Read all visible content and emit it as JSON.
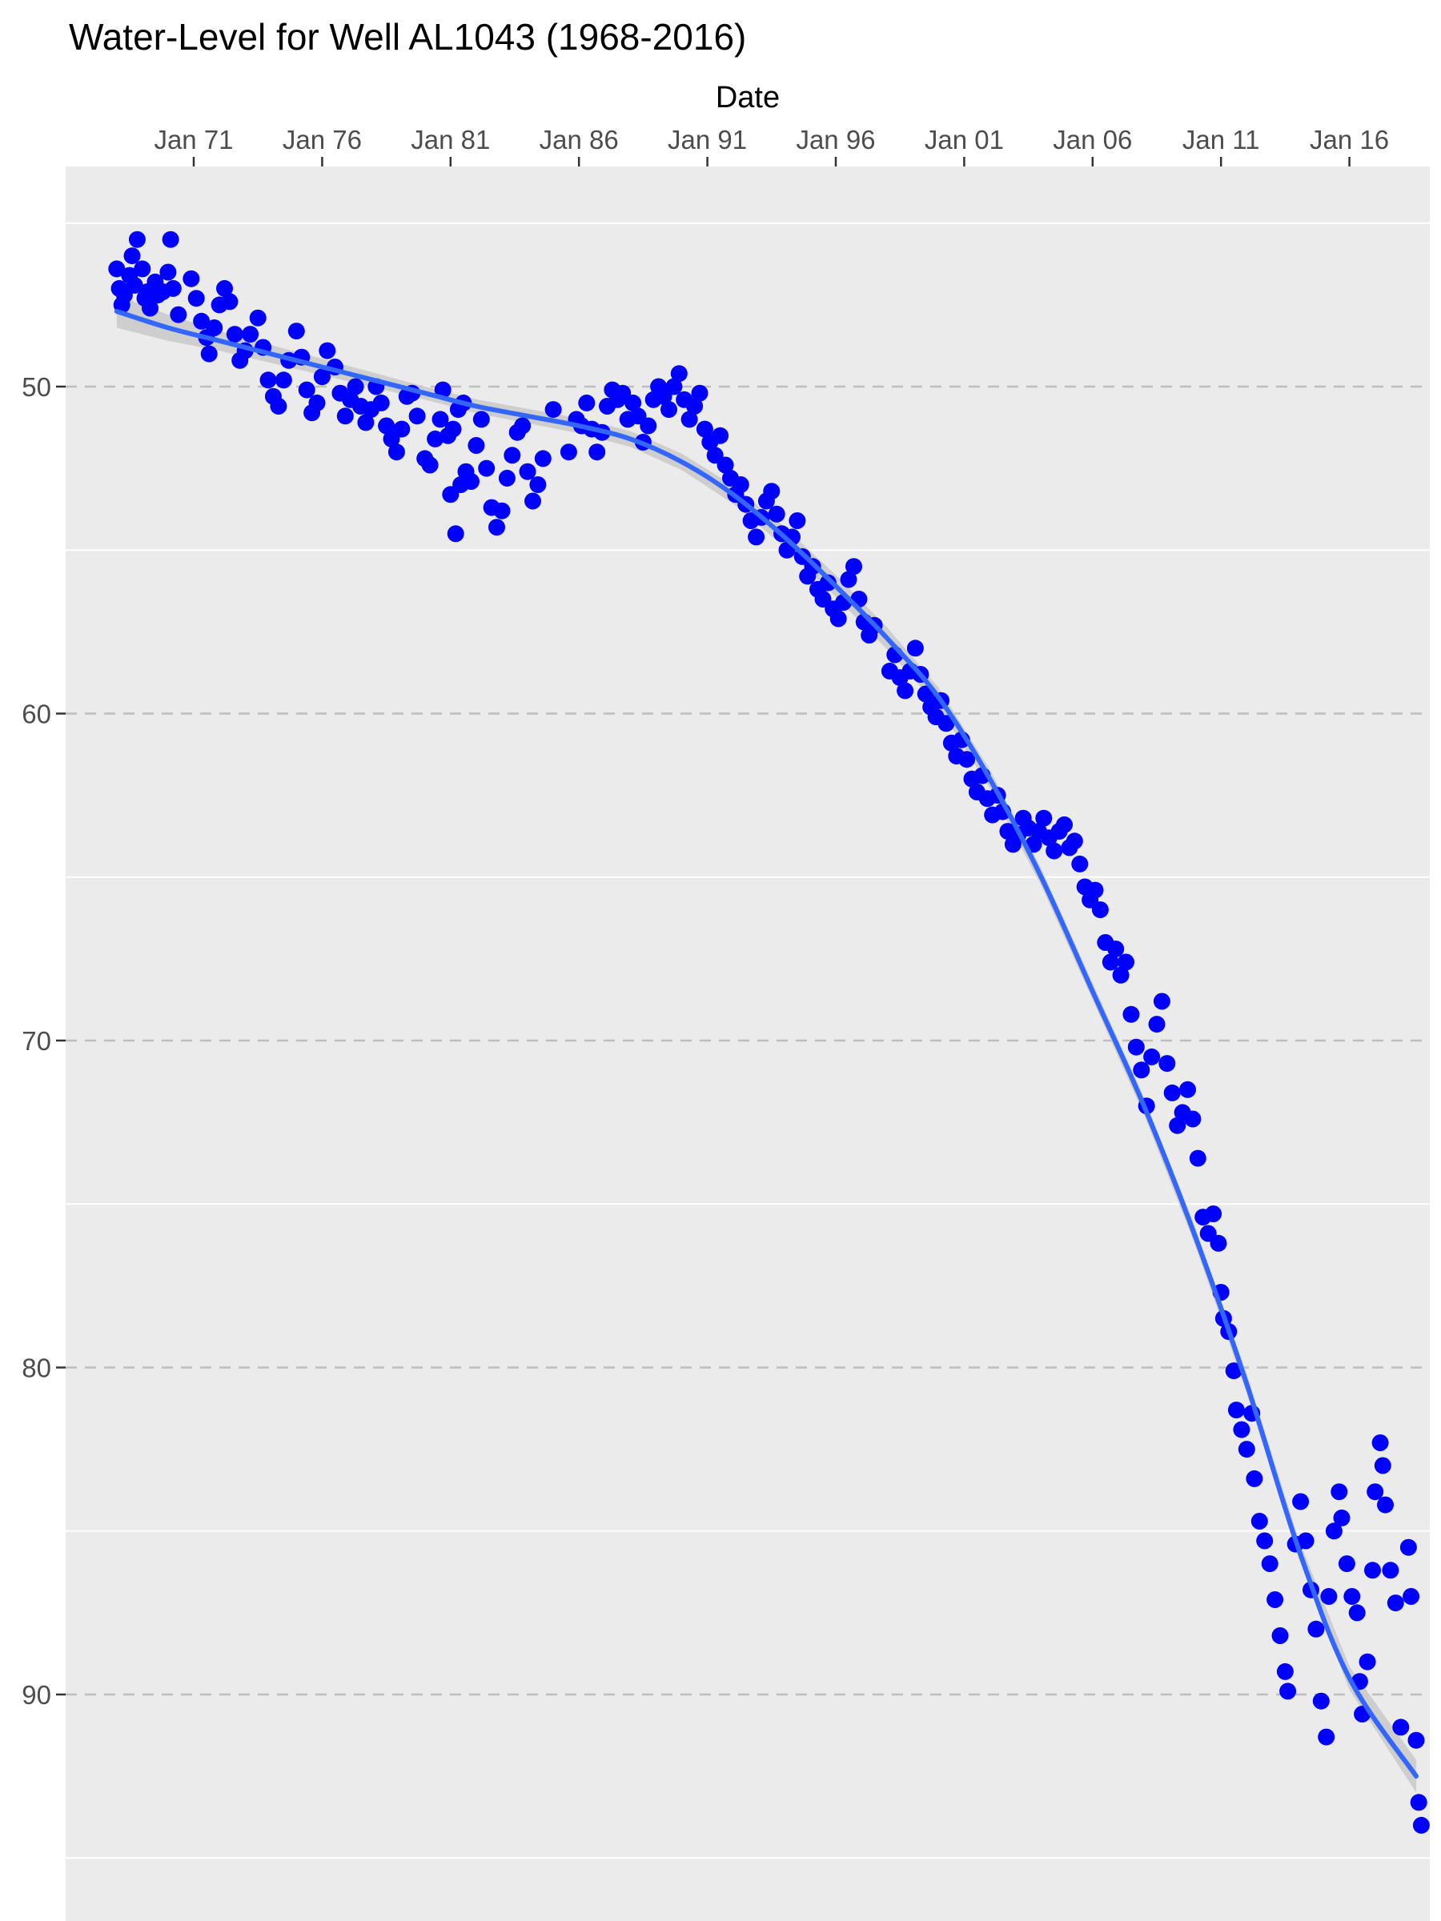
{
  "chart_data": {
    "type": "scatter",
    "title": "Water-Level for Well AL1043 (1968-2016)",
    "xlabel": "Date",
    "xaxis_position": "top",
    "ylabel": "",
    "y_reversed": true,
    "x_unit": "year",
    "xlim": [
      1967.4,
      2017.6
    ],
    "ylim": [
      42.5,
      95.8
    ],
    "x_ticks": [
      {
        "value": 1971,
        "label": "Jan 71"
      },
      {
        "value": 1976,
        "label": "Jan 76"
      },
      {
        "value": 1981,
        "label": "Jan 81"
      },
      {
        "value": 1986,
        "label": "Jan 86"
      },
      {
        "value": 1991,
        "label": "Jan 91"
      },
      {
        "value": 1996,
        "label": "Jan 96"
      },
      {
        "value": 2001,
        "label": "Jan 01"
      },
      {
        "value": 2006,
        "label": "Jan 06"
      },
      {
        "value": 2011,
        "label": "Jan 11"
      },
      {
        "value": 2016,
        "label": "Jan 16"
      }
    ],
    "y_ticks": [
      {
        "value": 50,
        "label": "50"
      },
      {
        "value": 60,
        "label": "60"
      },
      {
        "value": 70,
        "label": "70"
      },
      {
        "value": 80,
        "label": "80"
      },
      {
        "value": 90,
        "label": "90"
      }
    ],
    "y_minor": [
      45,
      55,
      65,
      75,
      85,
      95
    ],
    "grid": true,
    "colors": {
      "panel": "#ebebeb",
      "points": "#0000ff",
      "trend": "#3366ff",
      "band": "#c9c9c9",
      "major_grid": "#bdbdbd",
      "minor_grid": "#ffffff"
    },
    "series": [
      {
        "points": [
          [
            1968.0,
            46.4
          ],
          [
            1968.1,
            47.0
          ],
          [
            1968.2,
            47.5
          ],
          [
            1968.3,
            47.2
          ],
          [
            1968.5,
            46.6
          ],
          [
            1968.6,
            46.0
          ],
          [
            1968.7,
            46.9
          ],
          [
            1968.8,
            45.5
          ],
          [
            1969.0,
            46.4
          ],
          [
            1969.1,
            47.3
          ],
          [
            1969.2,
            47.1
          ],
          [
            1969.3,
            47.6
          ],
          [
            1969.5,
            46.8
          ],
          [
            1969.6,
            47.2
          ],
          [
            1969.8,
            47.1
          ],
          [
            1970.0,
            46.5
          ],
          [
            1970.1,
            45.5
          ],
          [
            1970.2,
            47.0
          ],
          [
            1970.4,
            47.8
          ],
          [
            1970.9,
            46.7
          ],
          [
            1971.1,
            47.3
          ],
          [
            1971.3,
            48.0
          ],
          [
            1971.5,
            48.5
          ],
          [
            1971.6,
            49.0
          ],
          [
            1971.8,
            48.2
          ],
          [
            1972.0,
            47.5
          ],
          [
            1972.2,
            47.0
          ],
          [
            1972.4,
            47.4
          ],
          [
            1972.6,
            48.4
          ],
          [
            1972.8,
            49.2
          ],
          [
            1973.0,
            48.9
          ],
          [
            1973.2,
            48.4
          ],
          [
            1973.5,
            47.9
          ],
          [
            1973.7,
            48.8
          ],
          [
            1973.9,
            49.8
          ],
          [
            1974.1,
            50.3
          ],
          [
            1974.3,
            50.6
          ],
          [
            1974.5,
            49.8
          ],
          [
            1974.7,
            49.2
          ],
          [
            1975.0,
            48.3
          ],
          [
            1975.2,
            49.1
          ],
          [
            1975.4,
            50.1
          ],
          [
            1975.6,
            50.8
          ],
          [
            1975.8,
            50.5
          ],
          [
            1976.0,
            49.7
          ],
          [
            1976.2,
            48.9
          ],
          [
            1976.5,
            49.4
          ],
          [
            1976.7,
            50.2
          ],
          [
            1976.9,
            50.9
          ],
          [
            1977.1,
            50.4
          ],
          [
            1977.3,
            50.0
          ],
          [
            1977.5,
            50.6
          ],
          [
            1977.7,
            51.1
          ],
          [
            1977.9,
            50.7
          ],
          [
            1978.1,
            50.0
          ],
          [
            1978.3,
            50.5
          ],
          [
            1978.5,
            51.2
          ],
          [
            1978.7,
            51.6
          ],
          [
            1978.9,
            52.0
          ],
          [
            1979.1,
            51.3
          ],
          [
            1979.3,
            50.3
          ],
          [
            1979.5,
            50.2
          ],
          [
            1979.7,
            50.9
          ],
          [
            1980.0,
            52.2
          ],
          [
            1980.2,
            52.4
          ],
          [
            1980.4,
            51.6
          ],
          [
            1980.6,
            51.0
          ],
          [
            1980.7,
            50.1
          ],
          [
            1980.9,
            51.5
          ],
          [
            1981.1,
            51.3
          ],
          [
            1981.3,
            50.7
          ],
          [
            1981.5,
            50.5
          ],
          [
            1981.0,
            53.3
          ],
          [
            1981.2,
            54.5
          ],
          [
            1981.4,
            53.0
          ],
          [
            1981.6,
            52.6
          ],
          [
            1981.8,
            52.9
          ],
          [
            1982.0,
            51.8
          ],
          [
            1982.2,
            51.0
          ],
          [
            1982.4,
            52.5
          ],
          [
            1982.6,
            53.7
          ],
          [
            1982.8,
            54.3
          ],
          [
            1983.0,
            53.8
          ],
          [
            1983.2,
            52.8
          ],
          [
            1983.4,
            52.1
          ],
          [
            1983.6,
            51.4
          ],
          [
            1983.8,
            51.2
          ],
          [
            1984.0,
            52.6
          ],
          [
            1984.2,
            53.5
          ],
          [
            1984.4,
            53.0
          ],
          [
            1984.6,
            52.2
          ],
          [
            1985.0,
            50.7
          ],
          [
            1985.6,
            52.0
          ],
          [
            1985.9,
            51.0
          ],
          [
            1986.1,
            51.2
          ],
          [
            1986.3,
            50.5
          ],
          [
            1986.5,
            51.3
          ],
          [
            1986.7,
            52.0
          ],
          [
            1986.9,
            51.4
          ],
          [
            1987.1,
            50.6
          ],
          [
            1987.3,
            50.1
          ],
          [
            1987.5,
            50.4
          ],
          [
            1987.7,
            50.2
          ],
          [
            1987.9,
            51.0
          ],
          [
            1988.1,
            50.5
          ],
          [
            1988.3,
            50.9
          ],
          [
            1988.5,
            51.7
          ],
          [
            1988.7,
            51.2
          ],
          [
            1988.9,
            50.4
          ],
          [
            1989.1,
            50.0
          ],
          [
            1989.3,
            50.3
          ],
          [
            1989.5,
            50.7
          ],
          [
            1989.7,
            50.0
          ],
          [
            1989.9,
            49.6
          ],
          [
            1990.1,
            50.4
          ],
          [
            1990.3,
            51.0
          ],
          [
            1990.5,
            50.6
          ],
          [
            1990.7,
            50.2
          ],
          [
            1990.9,
            51.3
          ],
          [
            1991.1,
            51.7
          ],
          [
            1991.3,
            52.1
          ],
          [
            1991.5,
            51.5
          ],
          [
            1991.7,
            52.4
          ],
          [
            1991.9,
            52.8
          ],
          [
            1992.1,
            53.3
          ],
          [
            1992.3,
            53.0
          ],
          [
            1992.5,
            53.6
          ],
          [
            1992.7,
            54.1
          ],
          [
            1992.9,
            54.6
          ],
          [
            1993.1,
            54.0
          ],
          [
            1993.3,
            53.5
          ],
          [
            1993.5,
            53.2
          ],
          [
            1993.7,
            53.9
          ],
          [
            1993.9,
            54.5
          ],
          [
            1994.1,
            55.0
          ],
          [
            1994.3,
            54.6
          ],
          [
            1994.5,
            54.1
          ],
          [
            1994.7,
            55.2
          ],
          [
            1994.9,
            55.8
          ],
          [
            1995.1,
            55.5
          ],
          [
            1995.3,
            56.2
          ],
          [
            1995.5,
            56.5
          ],
          [
            1995.7,
            56.0
          ],
          [
            1995.9,
            56.8
          ],
          [
            1996.1,
            57.1
          ],
          [
            1996.3,
            56.6
          ],
          [
            1996.5,
            55.9
          ],
          [
            1996.7,
            55.5
          ],
          [
            1996.9,
            56.5
          ],
          [
            1997.1,
            57.2
          ],
          [
            1997.3,
            57.6
          ],
          [
            1997.5,
            57.3
          ],
          [
            1998.1,
            58.7
          ],
          [
            1998.3,
            58.2
          ],
          [
            1998.5,
            58.9
          ],
          [
            1998.7,
            59.3
          ],
          [
            1998.9,
            58.7
          ],
          [
            1999.1,
            58.0
          ],
          [
            1999.3,
            58.8
          ],
          [
            1999.5,
            59.4
          ],
          [
            1999.7,
            59.8
          ],
          [
            1999.9,
            60.1
          ],
          [
            2000.1,
            59.6
          ],
          [
            2000.3,
            60.3
          ],
          [
            2000.5,
            60.9
          ],
          [
            2000.7,
            61.3
          ],
          [
            2000.9,
            60.8
          ],
          [
            2001.1,
            61.4
          ],
          [
            2001.3,
            62.0
          ],
          [
            2001.5,
            62.4
          ],
          [
            2001.7,
            61.9
          ],
          [
            2001.9,
            62.6
          ],
          [
            2002.1,
            63.1
          ],
          [
            2002.3,
            62.5
          ],
          [
            2002.5,
            63.0
          ],
          [
            2002.7,
            63.6
          ],
          [
            2002.9,
            64.0
          ],
          [
            2003.1,
            63.7
          ],
          [
            2003.3,
            63.2
          ],
          [
            2003.5,
            63.5
          ],
          [
            2003.7,
            64.0
          ],
          [
            2003.9,
            63.6
          ],
          [
            2004.1,
            63.2
          ],
          [
            2004.3,
            63.8
          ],
          [
            2004.5,
            64.2
          ],
          [
            2004.7,
            63.6
          ],
          [
            2004.9,
            63.4
          ],
          [
            2005.1,
            64.1
          ],
          [
            2005.3,
            63.9
          ],
          [
            2005.5,
            64.6
          ],
          [
            2005.7,
            65.3
          ],
          [
            2005.9,
            65.7
          ],
          [
            2006.1,
            65.4
          ],
          [
            2006.3,
            66.0
          ],
          [
            2006.5,
            67.0
          ],
          [
            2006.7,
            67.6
          ],
          [
            2006.9,
            67.2
          ],
          [
            2007.1,
            68.0
          ],
          [
            2007.3,
            67.6
          ],
          [
            2007.5,
            69.2
          ],
          [
            2007.7,
            70.2
          ],
          [
            2007.9,
            70.9
          ],
          [
            2008.1,
            72.0
          ],
          [
            2008.3,
            70.5
          ],
          [
            2008.5,
            69.5
          ],
          [
            2008.7,
            68.8
          ],
          [
            2008.9,
            70.7
          ],
          [
            2009.1,
            71.6
          ],
          [
            2009.3,
            72.6
          ],
          [
            2009.5,
            72.2
          ],
          [
            2009.7,
            71.5
          ],
          [
            2009.9,
            72.4
          ],
          [
            2010.1,
            73.6
          ],
          [
            2010.3,
            75.4
          ],
          [
            2010.5,
            75.9
          ],
          [
            2010.7,
            75.3
          ],
          [
            2010.9,
            76.2
          ],
          [
            2011.0,
            77.7
          ],
          [
            2011.1,
            78.5
          ],
          [
            2011.3,
            78.9
          ],
          [
            2011.5,
            80.1
          ],
          [
            2011.6,
            81.3
          ],
          [
            2011.8,
            81.9
          ],
          [
            2012.0,
            82.5
          ],
          [
            2012.2,
            81.4
          ],
          [
            2012.3,
            83.4
          ],
          [
            2012.5,
            84.7
          ],
          [
            2012.7,
            85.3
          ],
          [
            2012.9,
            86.0
          ],
          [
            2013.1,
            87.1
          ],
          [
            2013.3,
            88.2
          ],
          [
            2013.5,
            89.3
          ],
          [
            2013.6,
            89.9
          ],
          [
            2013.9,
            85.4
          ],
          [
            2014.1,
            84.1
          ],
          [
            2014.3,
            85.3
          ],
          [
            2014.5,
            86.8
          ],
          [
            2014.7,
            88.0
          ],
          [
            2014.9,
            90.2
          ],
          [
            2015.1,
            91.3
          ],
          [
            2015.2,
            87.0
          ],
          [
            2015.4,
            85.0
          ],
          [
            2015.6,
            83.8
          ],
          [
            2015.7,
            84.6
          ],
          [
            2015.9,
            86.0
          ],
          [
            2016.1,
            87.0
          ],
          [
            2016.3,
            87.5
          ],
          [
            2016.4,
            89.6
          ],
          [
            2016.5,
            90.6
          ],
          [
            2016.7,
            89.0
          ],
          [
            2016.9,
            86.2
          ],
          [
            2017.0,
            83.8
          ],
          [
            2017.2,
            82.3
          ],
          [
            2017.3,
            83.0
          ],
          [
            2017.4,
            84.2
          ],
          [
            2017.6,
            86.2
          ],
          [
            2017.8,
            87.2
          ],
          [
            2018.0,
            91.0
          ],
          [
            2018.3,
            85.5
          ],
          [
            2018.4,
            87.0
          ],
          [
            2018.6,
            91.4
          ],
          [
            2018.7,
            93.3
          ],
          [
            2018.8,
            94.0
          ]
        ]
      }
    ],
    "trend": [
      [
        1968.0,
        47.7
      ],
      [
        1970.0,
        48.2
      ],
      [
        1972.0,
        48.6
      ],
      [
        1974.0,
        49.0
      ],
      [
        1976.0,
        49.4
      ],
      [
        1978.0,
        49.8
      ],
      [
        1980.0,
        50.2
      ],
      [
        1982.0,
        50.6
      ],
      [
        1984.0,
        50.9
      ],
      [
        1986.0,
        51.2
      ],
      [
        1988.0,
        51.6
      ],
      [
        1990.0,
        52.3
      ],
      [
        1992.0,
        53.3
      ],
      [
        1994.0,
        54.6
      ],
      [
        1996.0,
        56.1
      ],
      [
        1998.0,
        57.7
      ],
      [
        2000.0,
        59.5
      ],
      [
        2002.0,
        62.0
      ],
      [
        2004.0,
        65.0
      ],
      [
        2006.0,
        68.5
      ],
      [
        2008.0,
        72.0
      ],
      [
        2010.0,
        76.0
      ],
      [
        2012.0,
        80.5
      ],
      [
        2014.0,
        85.5
      ],
      [
        2016.0,
        89.5
      ],
      [
        2018.6,
        92.5
      ]
    ],
    "band_halfwidth": [
      [
        1968.0,
        0.5
      ],
      [
        1972.0,
        0.3
      ],
      [
        1980.0,
        0.2
      ],
      [
        1990.0,
        0.25
      ],
      [
        1997.0,
        0.35
      ],
      [
        2000.0,
        0.3
      ],
      [
        2005.0,
        0.25
      ],
      [
        2015.0,
        0.3
      ],
      [
        2018.6,
        0.5
      ]
    ]
  }
}
